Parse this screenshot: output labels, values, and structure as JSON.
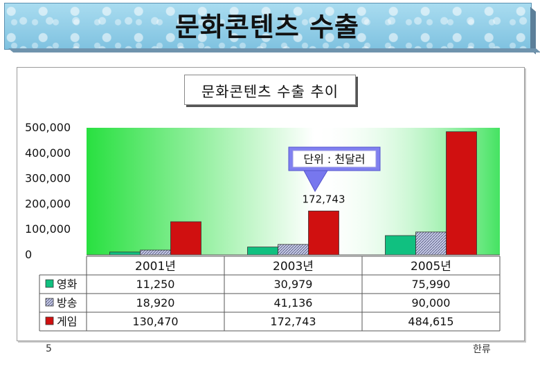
{
  "slide": {
    "title": "문화콘텐츠 수출",
    "page_number": "5",
    "footer_label": "한류"
  },
  "chart_data": {
    "type": "bar",
    "title": "문화콘텐츠 수출 추이",
    "categories": [
      "2001년",
      "2003년",
      "2005년"
    ],
    "series": [
      {
        "name": "영화",
        "values": [
          11250,
          30979,
          75990
        ],
        "labels": [
          "11,250",
          "30,979",
          "75,990"
        ],
        "color": "#10c080"
      },
      {
        "name": "방송",
        "values": [
          18920,
          41136,
          90000
        ],
        "labels": [
          "18,920",
          "41,136",
          "90,000"
        ],
        "color": "#9aa0cc"
      },
      {
        "name": "게임",
        "values": [
          130470,
          172743,
          484615
        ],
        "labels": [
          "130,470",
          "172,743",
          "484,615"
        ],
        "color": "#d01010"
      }
    ],
    "ylim": [
      0,
      500000
    ],
    "yticks": [
      0,
      100000,
      200000,
      300000,
      400000,
      500000
    ],
    "ytick_labels": [
      "0",
      "100,000",
      "200,000",
      "300,000",
      "400,000",
      "500,000"
    ],
    "annotation_callout": "단위 : 천달러",
    "annotation_value": "172,743",
    "grid": false,
    "legend": "data-table"
  }
}
